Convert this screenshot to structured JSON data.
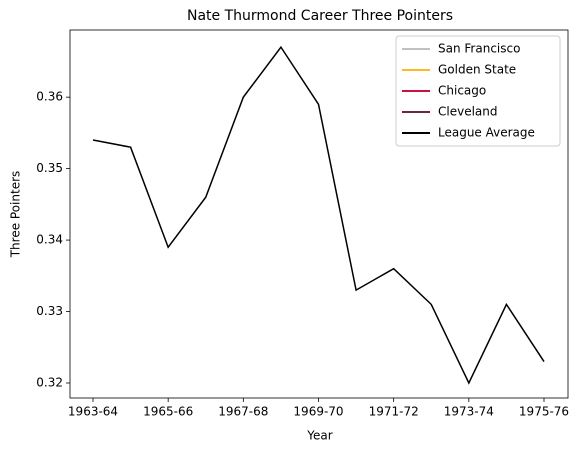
{
  "chart_data": {
    "type": "line",
    "title": "Nate Thurmond Career Three Pointers",
    "xlabel": "Year",
    "ylabel": "Three Pointers",
    "categories": [
      "1963-64",
      null,
      "1965-66",
      null,
      "1967-68",
      null,
      "1969-70",
      null,
      "1971-72",
      null,
      "1973-74",
      null,
      "1975-76"
    ],
    "series": [
      {
        "name": "San Francisco",
        "color": "#c0c0c0",
        "values": [
          null,
          null,
          null,
          null,
          null,
          null,
          null,
          null,
          null,
          null,
          null,
          null,
          null
        ]
      },
      {
        "name": "Golden State",
        "color": "#fdb927",
        "values": [
          null,
          null,
          null,
          null,
          null,
          null,
          null,
          null,
          null,
          null,
          null,
          null,
          null
        ]
      },
      {
        "name": "Chicago",
        "color": "#ce1141",
        "values": [
          null,
          null,
          null,
          null,
          null,
          null,
          null,
          null,
          null,
          null,
          null,
          null,
          null
        ]
      },
      {
        "name": "Cleveland",
        "color": "#6f263d",
        "values": [
          null,
          null,
          null,
          null,
          null,
          null,
          null,
          null,
          null,
          null,
          null,
          null,
          null
        ]
      },
      {
        "name": "League Average",
        "color": "#000000",
        "values": [
          0.354,
          0.353,
          0.339,
          0.346,
          0.36,
          0.367,
          0.359,
          0.333,
          0.336,
          0.331,
          0.32,
          0.331,
          0.323
        ]
      }
    ],
    "ylim": [
      0.3179,
      0.3694
    ],
    "yticks": [
      0.32,
      0.33,
      0.34,
      0.35,
      0.36
    ],
    "grid": false,
    "legend": "upper right"
  }
}
